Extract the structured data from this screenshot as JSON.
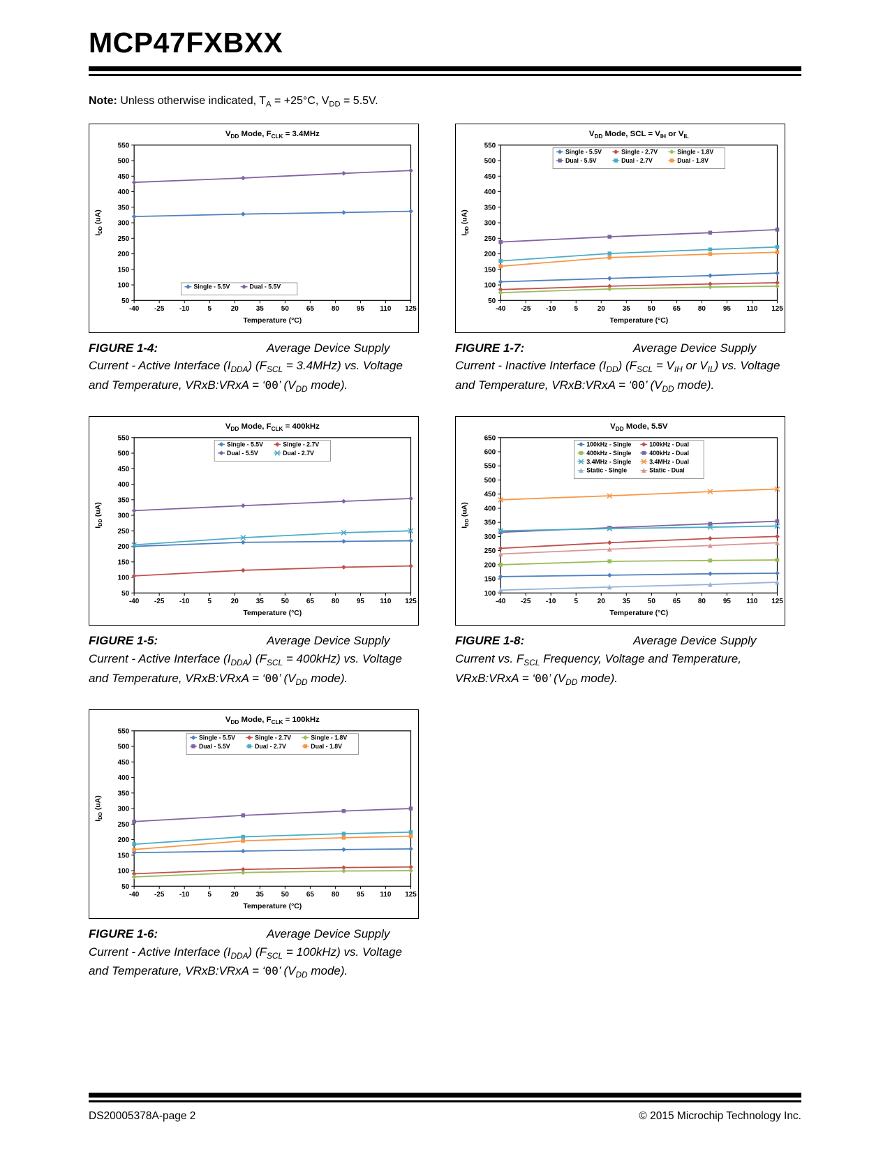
{
  "page": {
    "title": "MCP47FXBXX",
    "note": {
      "label": "Note:",
      "segments": [
        {
          "t": " Unless otherwise indicated, T"
        },
        {
          "t": "A",
          "sub": true
        },
        {
          "t": " = +25°C, V"
        },
        {
          "t": "DD",
          "sub": true
        },
        {
          "t": " = 5.5V."
        }
      ]
    },
    "footer": {
      "left": "DS20005378A-page 2",
      "right": "© 2015 Microchip Technology Inc."
    }
  },
  "figures": [
    {
      "label": "FIGURE 1-4:",
      "caption": [
        {
          "t": "Average Device Supply Current - Active Interface (I"
        },
        {
          "t": "DDA",
          "sub": true
        },
        {
          "t": ") (F"
        },
        {
          "t": "SCL",
          "sub": true
        },
        {
          "t": " = 3.4MHz) vs. Voltage and Temperature, VRxB:VRxA = ‘"
        },
        {
          "t": "00",
          "mono": true
        },
        {
          "t": "’ (V"
        },
        {
          "t": "DD",
          "sub": true
        },
        {
          "t": " mode)."
        }
      ]
    },
    {
      "label": "FIGURE 1-5:",
      "caption": [
        {
          "t": "Average Device Supply Current - Active Interface (I"
        },
        {
          "t": "DDA",
          "sub": true
        },
        {
          "t": ") (F"
        },
        {
          "t": "SCL",
          "sub": true
        },
        {
          "t": " = 400kHz) vs. Voltage and Temperature, VRxB:VRxA = ‘"
        },
        {
          "t": "00",
          "mono": true
        },
        {
          "t": "’ (V"
        },
        {
          "t": "DD",
          "sub": true
        },
        {
          "t": " mode)."
        }
      ]
    },
    {
      "label": "FIGURE 1-6:",
      "caption": [
        {
          "t": "Average Device Supply Current - Active Interface (I"
        },
        {
          "t": "DDA",
          "sub": true
        },
        {
          "t": ") (F"
        },
        {
          "t": "SCL",
          "sub": true
        },
        {
          "t": " = 100kHz) vs. Voltage and Temperature, VRxB:VRxA = ‘"
        },
        {
          "t": "00",
          "mono": true
        },
        {
          "t": "’ (V"
        },
        {
          "t": "DD",
          "sub": true
        },
        {
          "t": " mode)."
        }
      ]
    },
    {
      "label": "FIGURE 1-7:",
      "caption": [
        {
          "t": "Average Device Supply Current - Inactive Interface (I"
        },
        {
          "t": "DD",
          "sub": true
        },
        {
          "t": ") (F"
        },
        {
          "t": "SCL",
          "sub": true
        },
        {
          "t": " = V"
        },
        {
          "t": "IH",
          "sub": true
        },
        {
          "t": " or V"
        },
        {
          "t": "IL",
          "sub": true
        },
        {
          "t": ") vs. Voltage and Temperature, VRxB:VRxA = ‘"
        },
        {
          "t": "00",
          "mono": true
        },
        {
          "t": "’ (V"
        },
        {
          "t": "DD",
          "sub": true
        },
        {
          "t": " mode)."
        }
      ]
    },
    {
      "label": "FIGURE 1-8:",
      "caption": [
        {
          "t": "Average Device Supply Current vs. F"
        },
        {
          "t": "SCL",
          "sub": true
        },
        {
          "t": " Frequency, Voltage and Temperature, VRxB:VRxA = ‘"
        },
        {
          "t": "00",
          "mono": true
        },
        {
          "t": "’ (V"
        },
        {
          "t": "DD",
          "sub": true
        },
        {
          "t": " mode)."
        }
      ]
    }
  ],
  "chart_data": [
    {
      "type": "line",
      "title": [
        {
          "t": "V"
        },
        {
          "t": "DD",
          "sub": true
        },
        {
          "t": " Mode, F"
        },
        {
          "t": "CLK",
          "sub": true
        },
        {
          "t": " = 3.4MHz"
        }
      ],
      "xlabel": "Temperature (°C)",
      "ylabel": [
        {
          "t": "I"
        },
        {
          "t": "DD",
          "sub": true
        },
        {
          "t": " (uA)"
        }
      ],
      "x": [
        -40,
        25,
        85,
        125
      ],
      "xticks": [
        -40,
        -25,
        -10,
        5,
        20,
        35,
        50,
        65,
        80,
        95,
        110,
        125
      ],
      "xlim": [
        -40,
        125
      ],
      "ylim": [
        50,
        550
      ],
      "ytick_step": 50,
      "grid": false,
      "legend": {
        "cols": 2,
        "pos": "bottom"
      },
      "series": [
        {
          "name": "Single - 5.5V",
          "color": "#4F81BD",
          "marker": "diamond",
          "values": [
            320,
            328,
            333,
            337
          ]
        },
        {
          "name": "Dual - 5.5V",
          "color": "#8064A2",
          "marker": "diamond",
          "values": [
            430,
            444,
            459,
            468
          ]
        }
      ]
    },
    {
      "type": "line",
      "title": [
        {
          "t": "V"
        },
        {
          "t": "DD",
          "sub": true
        },
        {
          "t": " Mode, F"
        },
        {
          "t": "CLK",
          "sub": true
        },
        {
          "t": " = 400kHz"
        }
      ],
      "xlabel": "Temperature (°C)",
      "ylabel": [
        {
          "t": "I"
        },
        {
          "t": "DD",
          "sub": true
        },
        {
          "t": " (uA)"
        }
      ],
      "x": [
        -40,
        25,
        85,
        125
      ],
      "xticks": [
        -40,
        -25,
        -10,
        5,
        20,
        35,
        50,
        65,
        80,
        95,
        110,
        125
      ],
      "xlim": [
        -40,
        125
      ],
      "ylim": [
        50,
        550
      ],
      "ytick_step": 50,
      "grid": false,
      "legend": {
        "cols": 2,
        "pos": "top"
      },
      "series": [
        {
          "name": "Single - 5.5V",
          "color": "#4F81BD",
          "marker": "diamond",
          "values": [
            200,
            213,
            216,
            218
          ]
        },
        {
          "name": "Single - 2.7V",
          "color": "#C0504D",
          "marker": "diamond",
          "values": [
            105,
            123,
            133,
            137
          ]
        },
        {
          "name": "Dual - 5.5V",
          "color": "#8064A2",
          "marker": "diamond",
          "values": [
            315,
            331,
            345,
            354
          ]
        },
        {
          "name": "Dual - 2.7V",
          "color": "#4BACC6",
          "marker": "x",
          "values": [
            205,
            228,
            244,
            250
          ]
        }
      ]
    },
    {
      "type": "line",
      "title": [
        {
          "t": "V"
        },
        {
          "t": "DD",
          "sub": true
        },
        {
          "t": " Mode, F"
        },
        {
          "t": "CLK",
          "sub": true
        },
        {
          "t": " = 100kHz"
        }
      ],
      "xlabel": "Temperature (°C)",
      "ylabel": [
        {
          "t": "I"
        },
        {
          "t": "DD",
          "sub": true
        },
        {
          "t": " (uA)"
        }
      ],
      "x": [
        -40,
        25,
        85,
        125
      ],
      "xticks": [
        -40,
        -25,
        -10,
        5,
        20,
        35,
        50,
        65,
        80,
        95,
        110,
        125
      ],
      "xlim": [
        -40,
        125
      ],
      "ylim": [
        50,
        550
      ],
      "ytick_step": 50,
      "grid": false,
      "legend": {
        "cols": 3,
        "pos": "top"
      },
      "series": [
        {
          "name": "Single - 5.5V",
          "color": "#4F81BD",
          "marker": "diamond",
          "values": [
            158,
            163,
            168,
            170
          ]
        },
        {
          "name": "Single - 2.7V",
          "color": "#C0504D",
          "marker": "diamond",
          "values": [
            90,
            104,
            110,
            112
          ]
        },
        {
          "name": "Single - 1.8V",
          "color": "#9BBB59",
          "marker": "diamond",
          "values": [
            80,
            94,
            99,
            100
          ]
        },
        {
          "name": "Dual - 5.5V",
          "color": "#8064A2",
          "marker": "square",
          "values": [
            258,
            278,
            292,
            300
          ]
        },
        {
          "name": "Dual - 2.7V",
          "color": "#4BACC6",
          "marker": "square",
          "values": [
            185,
            209,
            219,
            224
          ]
        },
        {
          "name": "Dual - 1.8V",
          "color": "#F79646",
          "marker": "square",
          "values": [
            168,
            196,
            206,
            211
          ]
        }
      ]
    },
    {
      "type": "line",
      "title": [
        {
          "t": "V"
        },
        {
          "t": "DD",
          "sub": true
        },
        {
          "t": " Mode, SCL = V"
        },
        {
          "t": "IH",
          "sub": true
        },
        {
          "t": " or V"
        },
        {
          "t": "IL",
          "sub": true
        }
      ],
      "xlabel": "Temperature (°C)",
      "ylabel": [
        {
          "t": "I"
        },
        {
          "t": "DD",
          "sub": true
        },
        {
          "t": " (uA)"
        }
      ],
      "x": [
        -40,
        25,
        85,
        125
      ],
      "xticks": [
        -40,
        -25,
        -10,
        5,
        20,
        35,
        50,
        65,
        80,
        95,
        110,
        125
      ],
      "xlim": [
        -40,
        125
      ],
      "ylim": [
        50,
        550
      ],
      "ytick_step": 50,
      "grid": false,
      "legend": {
        "cols": 3,
        "pos": "top"
      },
      "series": [
        {
          "name": "Single - 5.5V",
          "color": "#4F81BD",
          "marker": "diamond",
          "values": [
            110,
            121,
            130,
            138
          ]
        },
        {
          "name": "Single - 2.7V",
          "color": "#C0504D",
          "marker": "diamond",
          "values": [
            85,
            96,
            103,
            107
          ]
        },
        {
          "name": "Single - 1.8V",
          "color": "#9BBB59",
          "marker": "diamond",
          "values": [
            75,
            87,
            93,
            96
          ]
        },
        {
          "name": "Dual - 5.5V",
          "color": "#8064A2",
          "marker": "square",
          "values": [
            238,
            255,
            268,
            278
          ]
        },
        {
          "name": "Dual - 2.7V",
          "color": "#4BACC6",
          "marker": "square",
          "values": [
            177,
            201,
            214,
            222
          ]
        },
        {
          "name": "Dual - 1.8V",
          "color": "#F79646",
          "marker": "square",
          "values": [
            160,
            188,
            199,
            205
          ]
        }
      ]
    },
    {
      "type": "line",
      "title": [
        {
          "t": "V"
        },
        {
          "t": "DD",
          "sub": true
        },
        {
          "t": " Mode, 5.5V"
        }
      ],
      "xlabel": "Temperature (°C)",
      "ylabel": [
        {
          "t": "I"
        },
        {
          "t": "DD",
          "sub": true
        },
        {
          "t": " (uA)"
        }
      ],
      "x": [
        -40,
        25,
        85,
        125
      ],
      "xticks": [
        -40,
        -25,
        -10,
        5,
        20,
        35,
        50,
        65,
        80,
        95,
        110,
        125
      ],
      "xlim": [
        -40,
        125
      ],
      "ylim": [
        100,
        650
      ],
      "ytick_step": 50,
      "grid": false,
      "legend": {
        "cols": 2,
        "pos": "top"
      },
      "series": [
        {
          "name": "100kHz - Single",
          "color": "#4F81BD",
          "marker": "diamond",
          "values": [
            158,
            163,
            168,
            170
          ]
        },
        {
          "name": "100kHz - Dual",
          "color": "#C0504D",
          "marker": "diamond",
          "values": [
            258,
            278,
            293,
            300
          ]
        },
        {
          "name": "400kHz - Single",
          "color": "#9BBB59",
          "marker": "square",
          "values": [
            200,
            212,
            215,
            217
          ]
        },
        {
          "name": "400kHz - Dual",
          "color": "#8064A2",
          "marker": "square",
          "values": [
            315,
            331,
            345,
            354
          ]
        },
        {
          "name": "3.4MHz - Single",
          "color": "#4BACC6",
          "marker": "x",
          "values": [
            320,
            328,
            333,
            337
          ]
        },
        {
          "name": "3.4MHz - Dual",
          "color": "#F79646",
          "marker": "x",
          "values": [
            430,
            444,
            459,
            468
          ]
        },
        {
          "name": "Static - Single",
          "color": "#95B3D7",
          "marker": "triangle",
          "values": [
            110,
            121,
            130,
            138
          ]
        },
        {
          "name": "Static - Dual",
          "color": "#D99694",
          "marker": "triangle",
          "values": [
            238,
            255,
            268,
            278
          ]
        }
      ]
    }
  ]
}
